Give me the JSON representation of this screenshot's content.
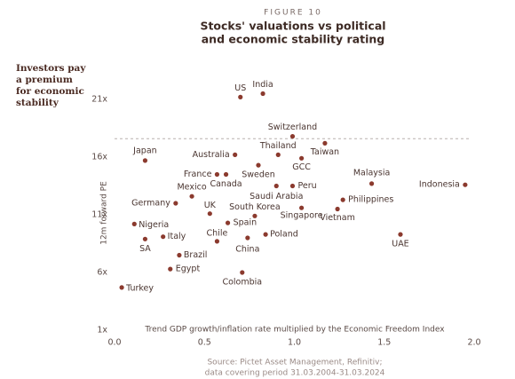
{
  "chart_data": {
    "type": "scatter",
    "figure_label": "FIGURE 10",
    "title_lines": [
      "Stocks' valuations vs political",
      "and economic stability rating"
    ],
    "side_note_lines": [
      "Investors pay",
      "a premium",
      "for economic",
      "stability"
    ],
    "ylabel": "12m forward PE",
    "xlabel": "Trend GDP growth/inflation rate multiplied by the Economic Freedom Index",
    "source_lines": [
      "Source: Pictet Asset Management, Refinitiv;",
      "data covering period 31.03.2004-31.03.2024"
    ],
    "color": "#8b3a2e",
    "reference_line": 17.6,
    "xlim": [
      0,
      2
    ],
    "xticks": [
      {
        "value": 0,
        "label": "0.0"
      },
      0.5,
      {
        "value": 1,
        "label": "1.0"
      },
      1.5,
      {
        "value": 2,
        "label": "2.0"
      }
    ],
    "ylim": [
      1,
      21
    ],
    "yticks": [
      {
        "value": 1,
        "label": "1x"
      },
      {
        "value": 6,
        "label": "6x"
      },
      {
        "value": 11,
        "label": "11x"
      },
      {
        "value": 16,
        "label": "16x"
      },
      {
        "value": 21,
        "label": "21x"
      }
    ],
    "point_labels": [
      "India",
      "US",
      "Switzerland",
      "Taiwan",
      "Thailand",
      "GCC",
      "Australia",
      "Japan",
      "Sweden",
      "France",
      "Canada",
      "Malaysia",
      "Indonesia",
      "Peru",
      "Saudi Arabia",
      "Mexico",
      "Philippines",
      "Germany",
      "Vietnam",
      "Singapore",
      "UK",
      "South Korea",
      "Spain",
      "Nigeria",
      "Poland",
      "UAE",
      "Italy",
      "SA",
      "China",
      "Chile",
      "Brazil",
      "Egypt",
      "Colombia",
      "Turkey"
    ],
    "x": [
      0.825,
      0.7,
      0.99,
      1.17,
      0.91,
      1.04,
      0.67,
      0.17,
      0.8,
      0.57,
      0.62,
      1.43,
      1.95,
      0.99,
      0.9,
      0.43,
      1.27,
      0.34,
      1.24,
      1.04,
      0.53,
      0.78,
      0.63,
      0.11,
      0.84,
      1.59,
      0.27,
      0.17,
      0.74,
      0.57,
      0.36,
      0.31,
      0.71,
      0.04
    ],
    "values": [
      21.5,
      21.2,
      17.8,
      17.2,
      16.2,
      15.9,
      16.2,
      15.7,
      15.3,
      14.5,
      14.5,
      13.7,
      13.6,
      13.5,
      13.5,
      12.6,
      12.3,
      12.0,
      11.5,
      11.6,
      11.1,
      10.9,
      10.3,
      10.2,
      9.3,
      9.3,
      9.1,
      8.9,
      9.0,
      8.7,
      7.5,
      6.3,
      6.0,
      4.7
    ]
  }
}
